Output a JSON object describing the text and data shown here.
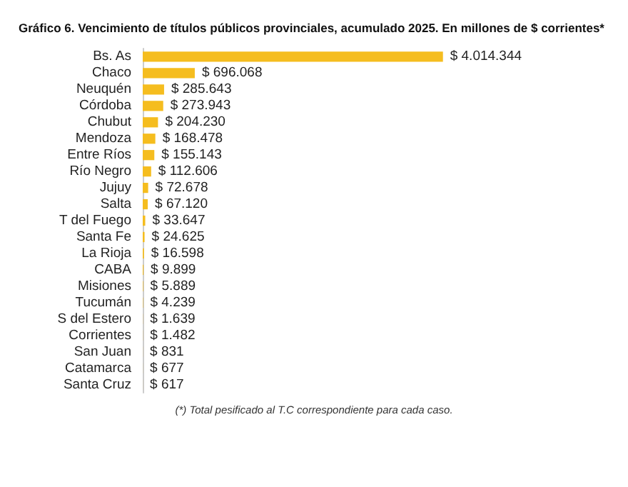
{
  "chart_data": {
    "type": "bar",
    "orientation": "horizontal",
    "title": "Gráfico 6. Vencimiento de títulos públicos provinciales, acumulado 2025. En millones de $ corrientes*",
    "categories": [
      "Bs. As",
      "Chaco",
      "Neuquén",
      "Córdoba",
      "Chubut",
      "Mendoza",
      "Entre Ríos",
      "Río Negro",
      "Jujuy",
      "Salta",
      "T del Fuego",
      "Santa Fe",
      "La Rioja",
      "CABA",
      "Misiones",
      "Tucumán",
      "S del Estero",
      "Corrientes",
      "San Juan",
      "Catamarca",
      "Santa Cruz"
    ],
    "values": [
      4014344,
      696068,
      285643,
      273943,
      204230,
      168478,
      155143,
      112606,
      72678,
      67120,
      33647,
      24625,
      16598,
      9899,
      5889,
      4239,
      1639,
      1482,
      831,
      677,
      617
    ],
    "value_labels": [
      "$ 4.014.344",
      "$ 696.068",
      "$ 285.643",
      "$ 273.943",
      "$ 204.230",
      "$ 168.478",
      "$ 155.143",
      "$ 112.606",
      "$ 72.678",
      "$ 67.120",
      "$ 33.647",
      "$ 24.625",
      "$ 16.598",
      "$ 9.899",
      "$ 5.889",
      "$ 4.239",
      "$ 1.639",
      "$ 1.482",
      "$ 831",
      "$ 677",
      "$ 617"
    ],
    "color": "#f5bd1f",
    "annotations": [
      "(*) Total pesificado al T.C correspondiente para cada caso."
    ]
  }
}
